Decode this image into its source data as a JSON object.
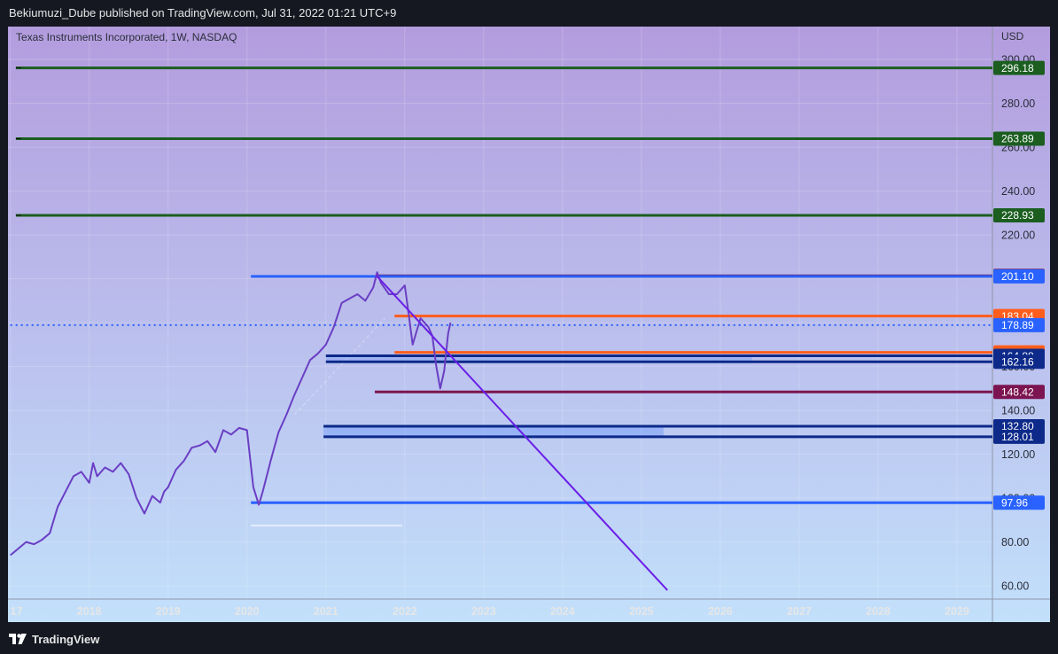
{
  "header": {
    "publish_line": "Bekiumuzi_Dube published on TradingView.com, Jul 31, 2022 01:21 UTC+9"
  },
  "footer": {
    "brand": "TradingView"
  },
  "colors": {
    "bg_top": "#b39cde",
    "bg_bottom": "#c2e0fb",
    "price_line": "#6a3ec4",
    "green": "#1b5e20",
    "blue": "#2962ff",
    "maroon": "#7b1450",
    "orange": "#ff5d1c",
    "navy": "#0d2a8a",
    "trend": "#6a1ee8"
  },
  "chart_data": {
    "type": "line",
    "symbol_title": "Texas Instruments Incorporated, 1W, NASDAQ",
    "currency_label": "USD",
    "x_ticks": [
      "17",
      "2018",
      "2019",
      "2020",
      "2021",
      "2022",
      "2023",
      "2024",
      "2025",
      "2026",
      "2027",
      "2028",
      "2029"
    ],
    "x_range": [
      2016.97,
      2029.45
    ],
    "ylim": [
      54,
      315
    ],
    "y_ticks": [
      "60.00",
      "80.00",
      "100.00",
      "120.00",
      "140.00",
      "160.00",
      "180.00",
      "200.00",
      "220.00",
      "240.00",
      "260.00",
      "280.00",
      "300.00"
    ],
    "grid": true,
    "series": [
      {
        "x": [
          2017.0,
          2017.1,
          2017.2,
          2017.3,
          2017.4,
          2017.5,
          2017.6,
          2017.7,
          2017.8,
          2017.9,
          2018.0,
          2018.05,
          2018.1,
          2018.2,
          2018.3,
          2018.4,
          2018.5,
          2018.6,
          2018.7,
          2018.8,
          2018.9,
          2018.95,
          2019.0,
          2019.1,
          2019.2,
          2019.3,
          2019.4,
          2019.5,
          2019.6,
          2019.7,
          2019.8,
          2019.9,
          2020.0,
          2020.08,
          2020.15,
          2020.2,
          2020.25,
          2020.3,
          2020.4,
          2020.5,
          2020.6,
          2020.7,
          2020.8,
          2020.9,
          2021.0,
          2021.1,
          2021.2,
          2021.3,
          2021.4,
          2021.5,
          2021.6,
          2021.65,
          2021.7,
          2021.8,
          2021.9,
          2022.0,
          2022.05,
          2022.1,
          2022.15,
          2022.2,
          2022.3,
          2022.35,
          2022.4,
          2022.45,
          2022.5,
          2022.55,
          2022.58
        ],
        "y": [
          74,
          77,
          80,
          79,
          81,
          84,
          96,
          103,
          110,
          112,
          107,
          116,
          110,
          114,
          112,
          116,
          111,
          100,
          93,
          101,
          98,
          103,
          105,
          113,
          117,
          123,
          124,
          126,
          121,
          131,
          129,
          132,
          131,
          105,
          97,
          103,
          110,
          117,
          130,
          138,
          147,
          155,
          163,
          166,
          170,
          178,
          189,
          191,
          193,
          190,
          196,
          203,
          198,
          193,
          193,
          197,
          184,
          170,
          176,
          182,
          178,
          174,
          160,
          150,
          158,
          175,
          180
        ]
      }
    ],
    "annotations": [
      {
        "kind": "hline",
        "price": 296.18,
        "from": 2017.07,
        "color": "green",
        "label": "296.18"
      },
      {
        "kind": "hline",
        "price": 263.89,
        "from": 2017.07,
        "color": "green",
        "label": "263.89"
      },
      {
        "kind": "hline",
        "price": 228.93,
        "from": 2017.07,
        "color": "green",
        "label": "228.93"
      },
      {
        "kind": "hline",
        "price": 201.35,
        "from": 2021.64,
        "color": "maroon",
        "label": "201.35"
      },
      {
        "kind": "hline",
        "price": 201.1,
        "from": 2020.05,
        "color": "blue",
        "label": "201.10"
      },
      {
        "kind": "hline",
        "price": 183.04,
        "from": 2021.87,
        "color": "orange",
        "label": "183.04"
      },
      {
        "kind": "hline",
        "price": 178.89,
        "from": 2017.0,
        "color": "blue",
        "dotted": true,
        "label": "178.89"
      },
      {
        "kind": "hline",
        "price": 166.48,
        "from": 2021.87,
        "color": "orange",
        "label": "166.48"
      },
      {
        "kind": "hline",
        "price": 164.88,
        "from": 2021.0,
        "color": "navy",
        "label": "164.88"
      },
      {
        "kind": "hline",
        "price": 162.16,
        "from": 2021.0,
        "color": "navy",
        "label": "162.16"
      },
      {
        "kind": "hline",
        "price": 148.42,
        "from": 2021.62,
        "color": "maroon",
        "label": "148.42"
      },
      {
        "kind": "hline",
        "price": 132.8,
        "from": 2020.97,
        "color": "navy",
        "label": "132.80"
      },
      {
        "kind": "hline",
        "price": 128.01,
        "from": 2020.97,
        "color": "navy",
        "label": "128.01"
      },
      {
        "kind": "hline",
        "price": 97.96,
        "from": 2020.05,
        "color": "blue",
        "label": "97.96"
      },
      {
        "kind": "trend",
        "x1": 2021.64,
        "y1": 201.5,
        "x2": 2025.33,
        "y2": 58,
        "color": "trend"
      }
    ]
  }
}
